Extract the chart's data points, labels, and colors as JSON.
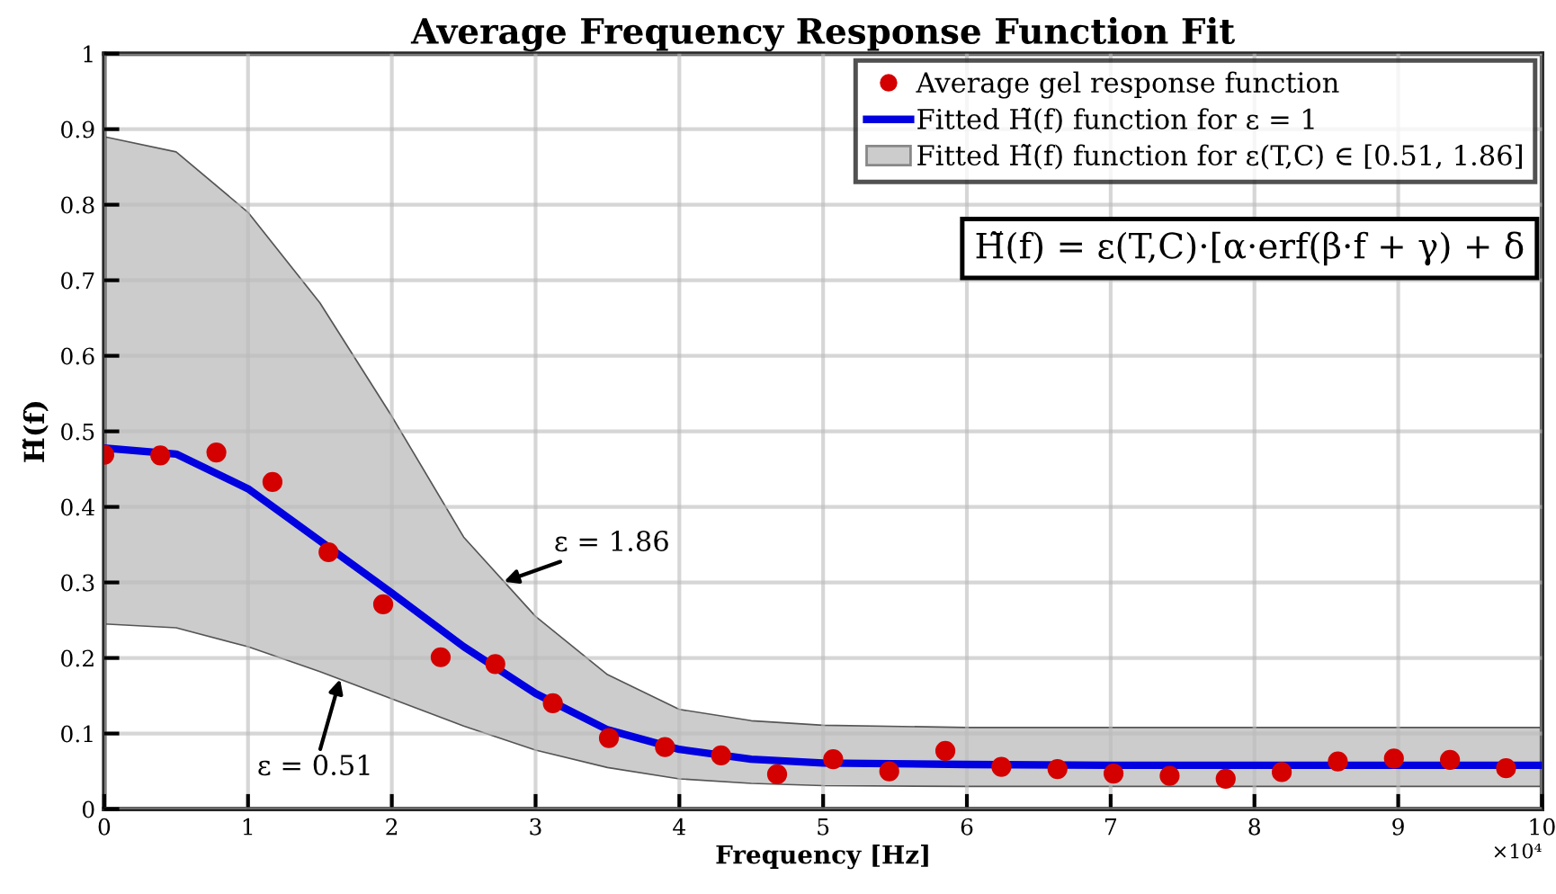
{
  "chart_data": {
    "type": "scatter",
    "title": "Average Frequency Response Function Fit",
    "xlabel": "Frequency [Hz]",
    "ylabel": "H̃(f)",
    "xlim": [
      0,
      10
    ],
    "xticks": [
      0,
      1,
      2,
      3,
      4,
      5,
      6,
      7,
      8,
      9,
      10
    ],
    "ylim": [
      0,
      1
    ],
    "yticks": [
      0,
      0.1,
      0.2,
      0.3,
      0.4,
      0.5,
      0.6,
      0.7,
      0.8,
      0.9,
      1
    ],
    "grid": true,
    "legend": "top right",
    "series": [
      {
        "type": "area",
        "name": "Fitted H̃(f) function for ε(T,C) ∈ [0.51, 1.86]",
        "color": "#cccccc"
      },
      {
        "name": "Average gel response function",
        "color": "#d40000",
        "marker": "circle",
        "x": [
          0,
          0.39,
          0.78,
          1.17,
          1.56,
          1.94,
          2.34,
          2.72,
          3.12,
          3.51,
          3.9,
          4.29,
          4.68,
          5.07,
          5.46,
          5.85,
          6.24,
          6.63,
          7.02,
          7.41,
          7.8,
          8.19,
          8.58,
          8.97,
          9.36,
          9.75
        ],
        "values": [
          0.469,
          0.468,
          0.472,
          0.433,
          0.34,
          0.271,
          0.201,
          0.192,
          0.14,
          0.094,
          0.082,
          0.071,
          0.046,
          0.066,
          0.05,
          0.077,
          0.056,
          0.053,
          0.047,
          0.044,
          0.04,
          0.049,
          0.063,
          0.067,
          0.065,
          0.054
        ]
      },
      {
        "type": "line",
        "name": "Fitted H̃(f) function for ε = 1",
        "color": "#0000e0",
        "x": [
          0,
          0.5,
          1,
          1.5,
          2,
          2.5,
          3,
          3.5,
          4,
          4.5,
          5,
          6,
          7,
          8,
          9,
          10
        ],
        "values": [
          0.478,
          0.47,
          0.424,
          0.355,
          0.286,
          0.215,
          0.153,
          0.105,
          0.079,
          0.066,
          0.061,
          0.059,
          0.058,
          0.058,
          0.058,
          0.058
        ],
        "lower": [
          0.245,
          0.24,
          0.215,
          0.182,
          0.146,
          0.11,
          0.078,
          0.055,
          0.04,
          0.034,
          0.031,
          0.03,
          0.03,
          0.03,
          0.03,
          0.03
        ],
        "upper": [
          0.89,
          0.87,
          0.79,
          0.67,
          0.52,
          0.36,
          0.255,
          0.178,
          0.132,
          0.117,
          0.111,
          0.108,
          0.108,
          0.108,
          0.108,
          0.108
        ]
      }
    ],
    "annotations": [
      "H̃(f) = ε(T,C)·[α·erf(β·f + γ) + δ",
      "×10⁴",
      {
        "text": "ε = 1.86",
        "x": 2.78,
        "y": 0.301
      },
      {
        "text": "ε = 0.51",
        "x": 1.64,
        "y": 0.172
      }
    ]
  }
}
